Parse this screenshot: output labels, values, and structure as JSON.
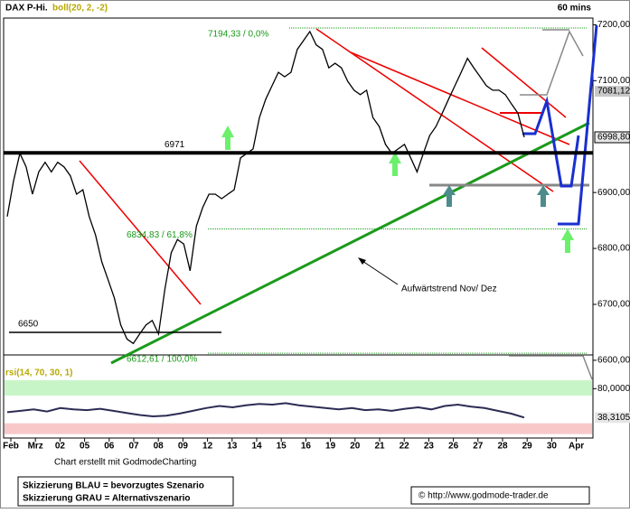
{
  "chart_data": [
    {
      "type": "line",
      "title": "DAX P-Hi.",
      "subtitle": "boll(20, 2, -2)",
      "timeframe": "60 mins",
      "color": "#000000",
      "x_labels": [
        "Feb",
        "Mrz",
        "02",
        "05",
        "06",
        "07",
        "08",
        "09",
        "12",
        "13",
        "14",
        "15",
        "16",
        "19",
        "20",
        "21",
        "22",
        "23",
        "26",
        "27",
        "28",
        "29",
        "30",
        "Apr"
      ],
      "values": [
        6857,
        6921,
        6970,
        6946,
        6897,
        6937,
        6954,
        6937,
        6954,
        6946,
        6930,
        6897,
        6905,
        6857,
        6824,
        6776,
        6744,
        6711,
        6663,
        6638,
        6630,
        6647,
        6663,
        6671,
        6647,
        6727,
        6792,
        6816,
        6808,
        6760,
        6840,
        6873,
        6897,
        6897,
        6889,
        6897,
        6905,
        6962,
        6970,
        6978,
        7034,
        7067,
        7091,
        7115,
        7107,
        7115,
        7156,
        7172,
        7188,
        7164,
        7156,
        7123,
        7131,
        7123,
        7099,
        7083,
        7075,
        7083,
        7034,
        7018,
        6986,
        6970,
        6978,
        6986,
        6962,
        6937,
        6970,
        7002,
        7018,
        7042,
        7067,
        7091,
        7115,
        7140,
        7123,
        7107,
        7091,
        7083,
        7083,
        7075,
        7058,
        7042,
        6999
      ],
      "ylim": [
        6595,
        7212
      ],
      "yticks": [
        {
          "value": 7200,
          "label": "7200,00"
        },
        {
          "value": 7100,
          "label": "7100,00"
        },
        {
          "value": 6900,
          "label": "6900,00"
        },
        {
          "value": 6800,
          "label": "6800,00"
        },
        {
          "value": 6700,
          "label": "6700,00"
        },
        {
          "value": 6600,
          "label": "6600,00"
        }
      ],
      "price_markers": [
        {
          "value": 7081.12,
          "label": "7081,12"
        },
        {
          "value": 6998.8,
          "label": "6998,80"
        }
      ],
      "hlines": [
        6971,
        6650
      ],
      "fib_levels": [
        {
          "value": 7194.33,
          "label": "7194,33 / 0,0%"
        },
        {
          "value": 6834.83,
          "label": "6834,83 / 61,8%"
        },
        {
          "value": 6612.61,
          "label": "6612,61 / 100,0%"
        }
      ],
      "annotation": "Aufwärtstrend Nov/ Dez",
      "footer": "Chart erstellt mit GodmodeCharting",
      "notes": [
        "Skizzierung BLAU = bevorzugtes Szenario",
        "Skizzierung GRAU = Alternativszenario"
      ],
      "copyright": "© http://www.godmode-trader.de"
    },
    {
      "type": "line",
      "title": "rsi(14, 70, 30, 1)",
      "color": "#2c2c54",
      "values": [
        46,
        48,
        50,
        47,
        52,
        50,
        49,
        51,
        48,
        45,
        42,
        40,
        41,
        44,
        48,
        52,
        55,
        53,
        56,
        58,
        57,
        59,
        56,
        54,
        52,
        50,
        52,
        49,
        50,
        48,
        51,
        53,
        50,
        55,
        57,
        54,
        52,
        48,
        44,
        38.31
      ],
      "ylim": [
        10,
        100
      ],
      "yticks": [
        {
          "value": 80,
          "label": "80,0000"
        }
      ],
      "bands": [
        70,
        30
      ],
      "last": {
        "value": 38.3105,
        "label": "38,3105"
      }
    }
  ]
}
